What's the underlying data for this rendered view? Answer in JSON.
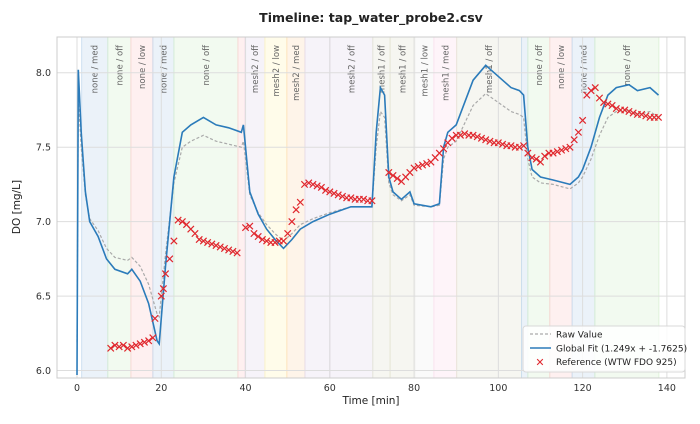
{
  "chart_data": {
    "type": "line",
    "title": "Timeline: tap_water_probe2.csv",
    "xlabel": "Time [min]",
    "ylabel": "DO [mg/L]",
    "xlim": [
      -4.75,
      144.3
    ],
    "ylim": [
      5.95,
      8.24
    ],
    "xticks": [
      0,
      20,
      40,
      60,
      80,
      100,
      120,
      140
    ],
    "yticks": [
      6.0,
      6.5,
      7.0,
      7.5,
      8.0
    ],
    "grid": true,
    "legend_position": "bottom-right",
    "bands": [
      {
        "start": 1.1,
        "end": 7.3,
        "label": "none / med",
        "color": "#c6dbef"
      },
      {
        "start": 7.3,
        "end": 12.8,
        "label": "none / off",
        "color": "#d9f0d3"
      },
      {
        "start": 12.8,
        "end": 18,
        "label": "none / low",
        "color": "#fcd5d5"
      },
      {
        "start": 18,
        "end": 23,
        "label": "none / med",
        "color": "#c6dbef"
      },
      {
        "start": 23,
        "end": 38.2,
        "label": "none / off",
        "color": "#d9f0d3"
      },
      {
        "start": 38.2,
        "end": 39.9,
        "label": "",
        "color": "#fcd5d5"
      },
      {
        "start": 39.9,
        "end": 44.6,
        "label": "mesh2 / off",
        "color": "#e4dcef"
      },
      {
        "start": 44.6,
        "end": 49.8,
        "label": "mesh2 / low",
        "color": "#fff7c2"
      },
      {
        "start": 49.8,
        "end": 54.1,
        "label": "mesh2 / med",
        "color": "#fde0c0"
      },
      {
        "start": 54.1,
        "end": 60,
        "label": "",
        "color": "#e4dcef"
      },
      {
        "start": 60,
        "end": 70.2,
        "label": "mesh2 / off",
        "color": "#e4dcef"
      },
      {
        "start": 70.2,
        "end": 74.3,
        "label": "mesh1 / off",
        "color": "#e6e6d6"
      },
      {
        "start": 74.3,
        "end": 80.2,
        "label": "mesh1 / off",
        "color": "#e6e6d6"
      },
      {
        "start": 80.2,
        "end": 84.7,
        "label": "mesh1 / low",
        "color": "#f2f2f2"
      },
      {
        "start": 84.7,
        "end": 90.1,
        "label": "mesh1 / med",
        "color": "#fbe0ee"
      },
      {
        "start": 90.1,
        "end": 105.5,
        "label": "mesh1 / off",
        "color": "#e6e6d6"
      },
      {
        "start": 105.5,
        "end": 107,
        "label": "",
        "color": "#c6dbef"
      },
      {
        "start": 107,
        "end": 112.2,
        "label": "none / off",
        "color": "#d9f0d3"
      },
      {
        "start": 112.2,
        "end": 117.5,
        "label": "none / low",
        "color": "#fcd5d5"
      },
      {
        "start": 117.5,
        "end": 122.9,
        "label": "none / med",
        "color": "#c6dbef"
      },
      {
        "start": 122.9,
        "end": 138.1,
        "label": "none / off",
        "color": "#d9f0d3"
      }
    ],
    "x": [
      0,
      0.3,
      1,
      2,
      3,
      5,
      7,
      9,
      12,
      13,
      15,
      17,
      19,
      19.5,
      21,
      23,
      25,
      27,
      30,
      33,
      36,
      39,
      39.5,
      41,
      43,
      45,
      47,
      49,
      51,
      53,
      56,
      60,
      65,
      70,
      71,
      72,
      73,
      74,
      75,
      77,
      79,
      80,
      84,
      86,
      87,
      88,
      90,
      94,
      97,
      99,
      101,
      103,
      105,
      106,
      107,
      108,
      110,
      113,
      117,
      119,
      120,
      122,
      124,
      126,
      128,
      131,
      133,
      136,
      138
    ],
    "series": [
      {
        "name": "Raw Value",
        "color": "#aaaaaa",
        "style": "dashed",
        "values": [
          6.19,
          7.83,
          7.5,
          7.18,
          7.02,
          6.94,
          6.82,
          6.76,
          6.74,
          6.76,
          6.7,
          6.58,
          6.38,
          6.36,
          6.78,
          7.26,
          7.5,
          7.54,
          7.58,
          7.54,
          7.52,
          7.5,
          7.54,
          7.18,
          7.06,
          6.98,
          6.92,
          6.87,
          6.92,
          6.98,
          7.02,
          7.06,
          7.1,
          7.1,
          7.5,
          7.74,
          7.7,
          7.26,
          7.18,
          7.14,
          7.18,
          7.11,
          7.1,
          7.11,
          7.42,
          7.5,
          7.54,
          7.78,
          7.86,
          7.82,
          7.78,
          7.74,
          7.72,
          7.7,
          7.42,
          7.3,
          7.26,
          7.25,
          7.22,
          7.26,
          7.3,
          7.42,
          7.58,
          7.7,
          7.74,
          7.75,
          7.72,
          7.74,
          7.7
        ]
      },
      {
        "name": "Global Fit (1.249x + -1.7625)",
        "color": "#2b7bba",
        "style": "solid",
        "values": [
          5.97,
          8.02,
          7.6,
          7.2,
          7.0,
          6.9,
          6.75,
          6.68,
          6.65,
          6.68,
          6.6,
          6.45,
          6.2,
          6.18,
          6.7,
          7.3,
          7.6,
          7.65,
          7.7,
          7.65,
          7.63,
          7.6,
          7.65,
          7.2,
          7.05,
          6.95,
          6.88,
          6.82,
          6.88,
          6.95,
          7.0,
          7.05,
          7.1,
          7.1,
          7.6,
          7.9,
          7.85,
          7.3,
          7.2,
          7.15,
          7.2,
          7.12,
          7.1,
          7.12,
          7.5,
          7.6,
          7.65,
          7.95,
          8.05,
          8.0,
          7.95,
          7.9,
          7.88,
          7.85,
          7.5,
          7.35,
          7.3,
          7.28,
          7.25,
          7.3,
          7.35,
          7.5,
          7.7,
          7.85,
          7.9,
          7.92,
          7.88,
          7.9,
          7.85
        ]
      }
    ],
    "reference": {
      "name": "Reference (WTW FDO 925)",
      "color": "#e0282e",
      "x": [
        8,
        9,
        10,
        11,
        12,
        13,
        14,
        15,
        16,
        17,
        18,
        18.5,
        20,
        20.5,
        21,
        22,
        23,
        24,
        25,
        26,
        27,
        28,
        29,
        30,
        31,
        32,
        33,
        34,
        35,
        36,
        37,
        38,
        40,
        41,
        42,
        43,
        44,
        45,
        46,
        47,
        48,
        49,
        50,
        51,
        52,
        53,
        54,
        55,
        56,
        57,
        58,
        59,
        60,
        61,
        62,
        63,
        64,
        65,
        66,
        67,
        68,
        69,
        70,
        74,
        75,
        76,
        77,
        78,
        79,
        80,
        81,
        82,
        83,
        84,
        85,
        86,
        87,
        88,
        89,
        90,
        91,
        92,
        93,
        94,
        95,
        96,
        97,
        98,
        99,
        100,
        101,
        102,
        103,
        104,
        105,
        106,
        107,
        108,
        109,
        110,
        111,
        112,
        113,
        114,
        115,
        116,
        117,
        118,
        119,
        120,
        121,
        122,
        123,
        124,
        125,
        126,
        127,
        128,
        129,
        130,
        131,
        132,
        133,
        134,
        135,
        136,
        137,
        138
      ],
      "y": [
        6.15,
        6.17,
        6.16,
        6.17,
        6.15,
        6.16,
        6.17,
        6.18,
        6.19,
        6.2,
        6.22,
        6.35,
        6.5,
        6.55,
        6.65,
        6.75,
        6.87,
        7.01,
        7.0,
        6.98,
        6.95,
        6.92,
        6.88,
        6.87,
        6.86,
        6.85,
        6.84,
        6.83,
        6.82,
        6.81,
        6.8,
        6.79,
        6.96,
        6.97,
        6.92,
        6.9,
        6.88,
        6.87,
        6.86,
        6.86,
        6.87,
        6.87,
        6.92,
        7.0,
        7.08,
        7.13,
        7.25,
        7.26,
        7.25,
        7.24,
        7.23,
        7.21,
        7.2,
        7.19,
        7.18,
        7.17,
        7.16,
        7.16,
        7.15,
        7.15,
        7.15,
        7.14,
        7.14,
        7.33,
        7.31,
        7.29,
        7.27,
        7.3,
        7.33,
        7.36,
        7.37,
        7.38,
        7.39,
        7.4,
        7.43,
        7.46,
        7.49,
        7.53,
        7.56,
        7.58,
        7.58,
        7.59,
        7.58,
        7.58,
        7.57,
        7.56,
        7.55,
        7.54,
        7.53,
        7.53,
        7.52,
        7.51,
        7.51,
        7.5,
        7.5,
        7.51,
        7.46,
        7.43,
        7.42,
        7.4,
        7.44,
        7.46,
        7.46,
        7.47,
        7.48,
        7.49,
        7.5,
        7.55,
        7.6,
        7.68,
        7.85,
        7.88,
        7.9,
        7.83,
        7.8,
        7.79,
        7.78,
        7.76,
        7.75,
        7.75,
        7.74,
        7.73,
        7.72,
        7.72,
        7.71,
        7.7,
        7.7,
        7.7
      ]
    }
  }
}
